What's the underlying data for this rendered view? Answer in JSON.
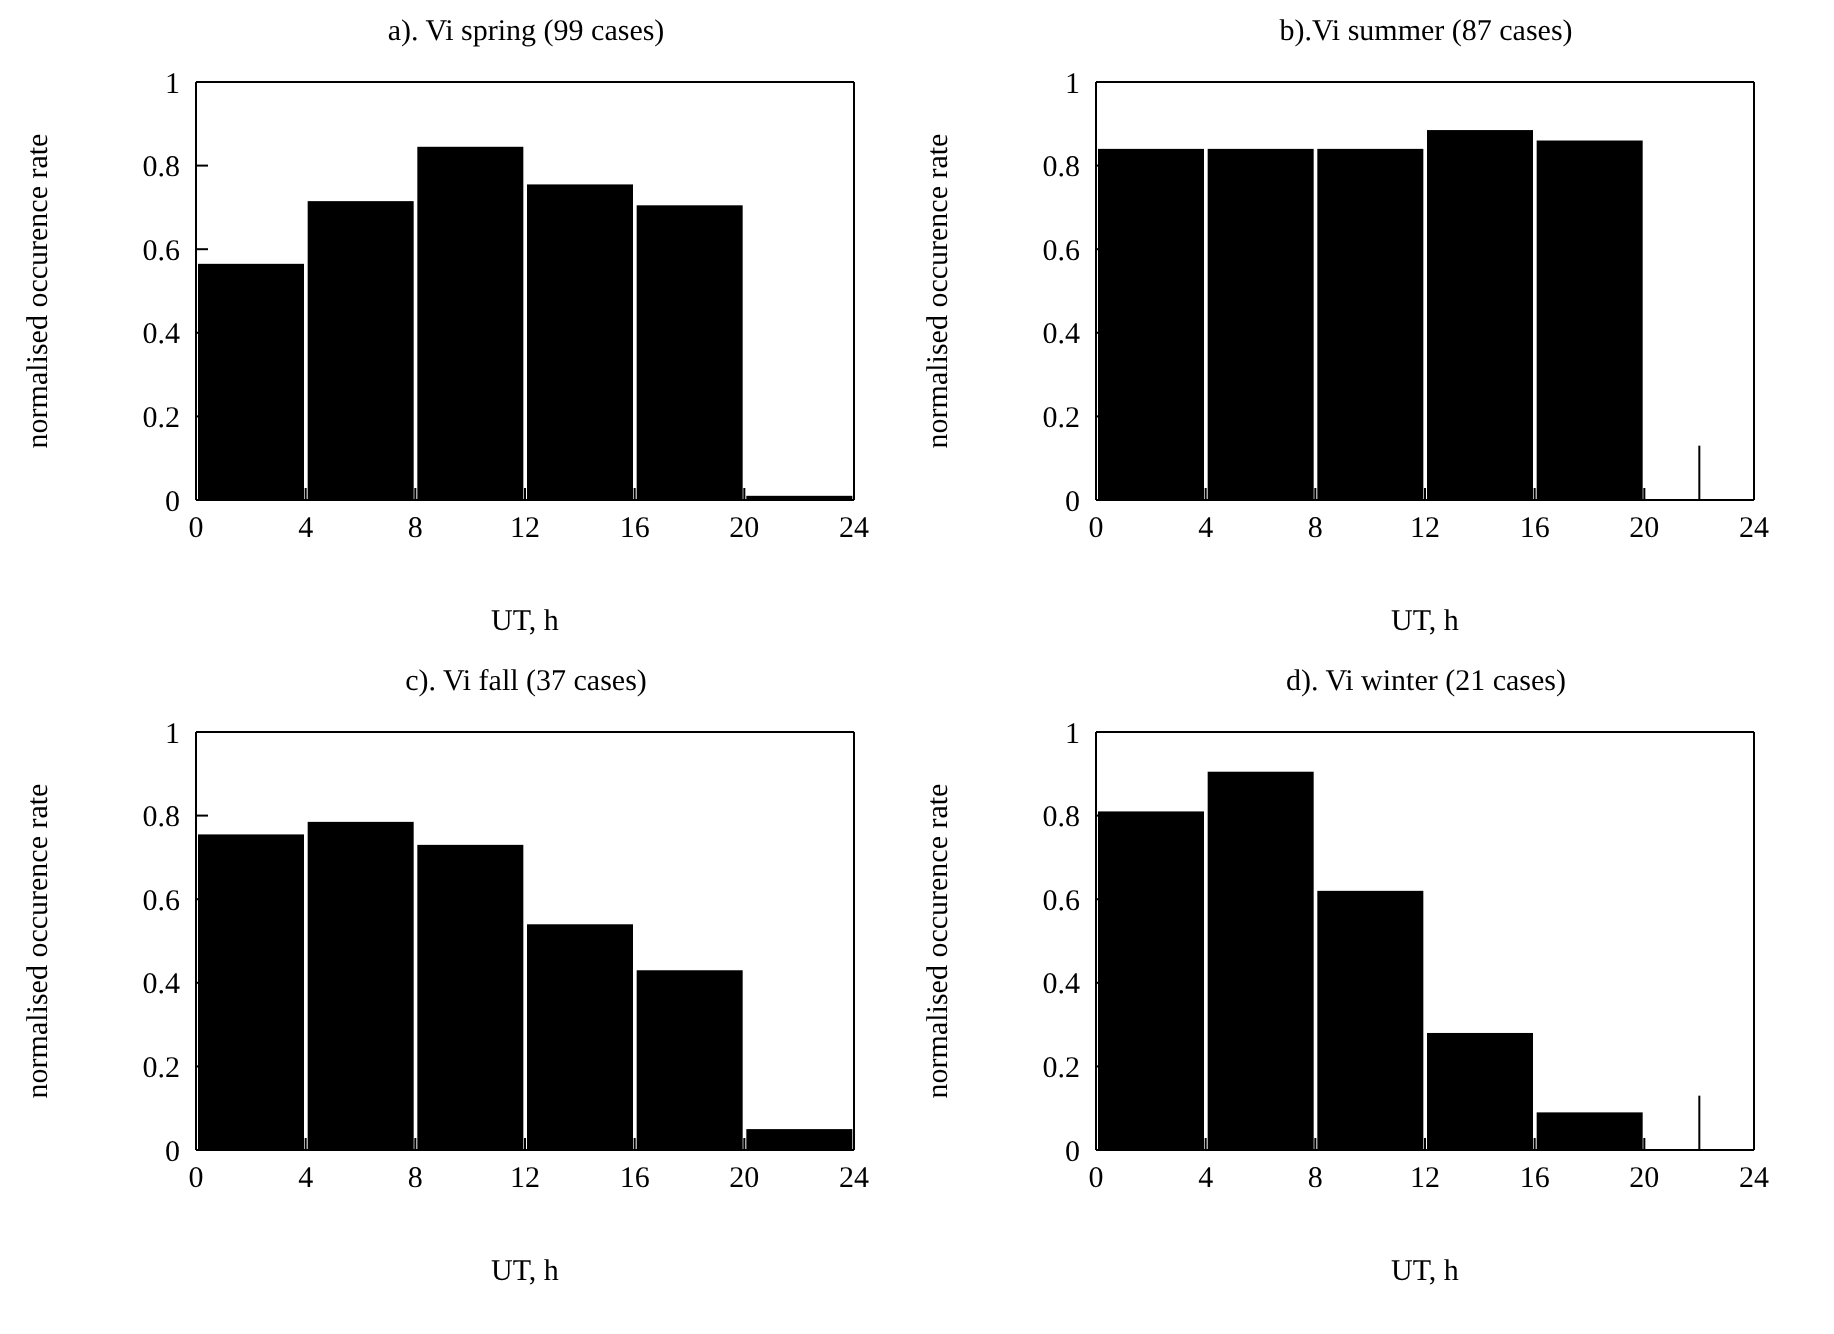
{
  "chart_data": [
    {
      "type": "histogram",
      "title": "a). Vi spring (99 cases)",
      "xlabel": "UT, h",
      "ylabel": "normalised occurence rate",
      "color": "#000000",
      "bins": [
        0,
        4,
        8,
        12,
        16,
        20,
        24
      ],
      "values": [
        0.565,
        0.715,
        0.845,
        0.755,
        0.705,
        0.01
      ],
      "xlim": [
        0,
        24
      ],
      "xticks": [
        0,
        4,
        8,
        12,
        16,
        20,
        24
      ],
      "ylim": [
        0,
        1
      ],
      "yticks": [
        0,
        0.2,
        0.4,
        0.6,
        0.8,
        1
      ]
    },
    {
      "type": "histogram",
      "title": "b).Vi summer (87 cases)",
      "xlabel": "UT, h",
      "ylabel": "normalised occurence rate",
      "color": "#000000",
      "bins": [
        0,
        4,
        8,
        12,
        16,
        20,
        24
      ],
      "values": [
        0.84,
        0.84,
        0.84,
        0.885,
        0.86,
        0
      ],
      "errors": [
        null,
        null,
        null,
        null,
        null,
        [
          0,
          0.13
        ]
      ],
      "xlim": [
        0,
        24
      ],
      "xticks": [
        0,
        4,
        8,
        12,
        16,
        20,
        24
      ],
      "ylim": [
        0,
        1
      ],
      "yticks": [
        0,
        0.2,
        0.4,
        0.6,
        0.8,
        1
      ]
    },
    {
      "type": "histogram",
      "title": "c). Vi fall (37 cases)",
      "xlabel": "UT, h",
      "ylabel": "normalised occurence rate",
      "color": "#000000",
      "bins": [
        0,
        4,
        8,
        12,
        16,
        20,
        24
      ],
      "values": [
        0.755,
        0.785,
        0.73,
        0.54,
        0.43,
        0.05
      ],
      "xlim": [
        0,
        24
      ],
      "xticks": [
        0,
        4,
        8,
        12,
        16,
        20,
        24
      ],
      "ylim": [
        0,
        1
      ],
      "yticks": [
        0,
        0.2,
        0.4,
        0.6,
        0.8,
        1
      ]
    },
    {
      "type": "histogram",
      "title": "d). Vi winter (21 cases)",
      "xlabel": "UT, h",
      "ylabel": "normalised occurence rate",
      "color": "#000000",
      "bins": [
        0,
        4,
        8,
        12,
        16,
        20,
        24
      ],
      "values": [
        0.81,
        0.905,
        0.62,
        0.28,
        0.09,
        0
      ],
      "errors": [
        null,
        null,
        null,
        null,
        null,
        [
          0,
          0.13
        ]
      ],
      "xlim": [
        0,
        24
      ],
      "xticks": [
        0,
        4,
        8,
        12,
        16,
        20,
        24
      ],
      "ylim": [
        0,
        1
      ],
      "yticks": [
        0,
        0.2,
        0.4,
        0.6,
        0.8,
        1
      ]
    }
  ]
}
